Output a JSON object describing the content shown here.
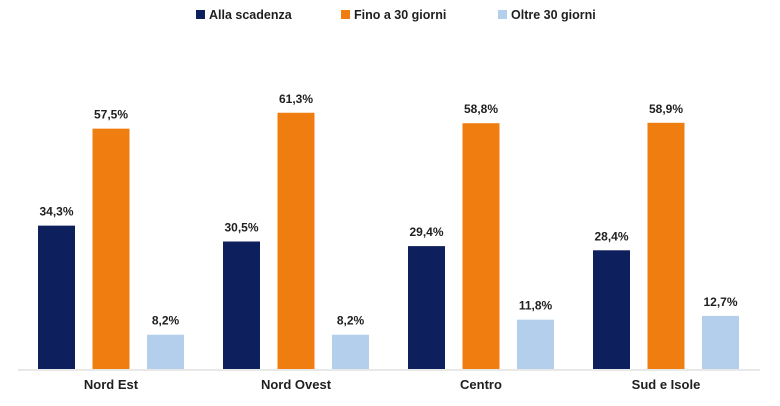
{
  "chart_data": {
    "type": "bar",
    "title": "",
    "xlabel": "",
    "ylabel": "",
    "categories": [
      "Nord Est",
      "Nord Ovest",
      "Centro",
      "Sud e Isole"
    ],
    "series": [
      {
        "name": "Alla scadenza",
        "color": "#0d1f5c",
        "values": [
          34.3,
          30.5,
          29.4,
          28.4
        ],
        "labels": [
          "34,3%",
          "30,5%",
          "29,4%",
          "28,4%"
        ]
      },
      {
        "name": "Fino a 30 giorni",
        "color": "#f07d10",
        "values": [
          57.5,
          61.3,
          58.8,
          58.9
        ],
        "labels": [
          "57,5%",
          "61,3%",
          "58,8%",
          "58,9%"
        ]
      },
      {
        "name": "Oltre 30 giorni",
        "color": "#b4cfec",
        "values": [
          8.2,
          8.2,
          11.8,
          12.7
        ],
        "labels": [
          "8,2%",
          "8,2%",
          "11,8%",
          "12,7%"
        ]
      }
    ],
    "ylim": [
      0,
      100
    ],
    "grid": false,
    "legend_position": "top-center"
  }
}
